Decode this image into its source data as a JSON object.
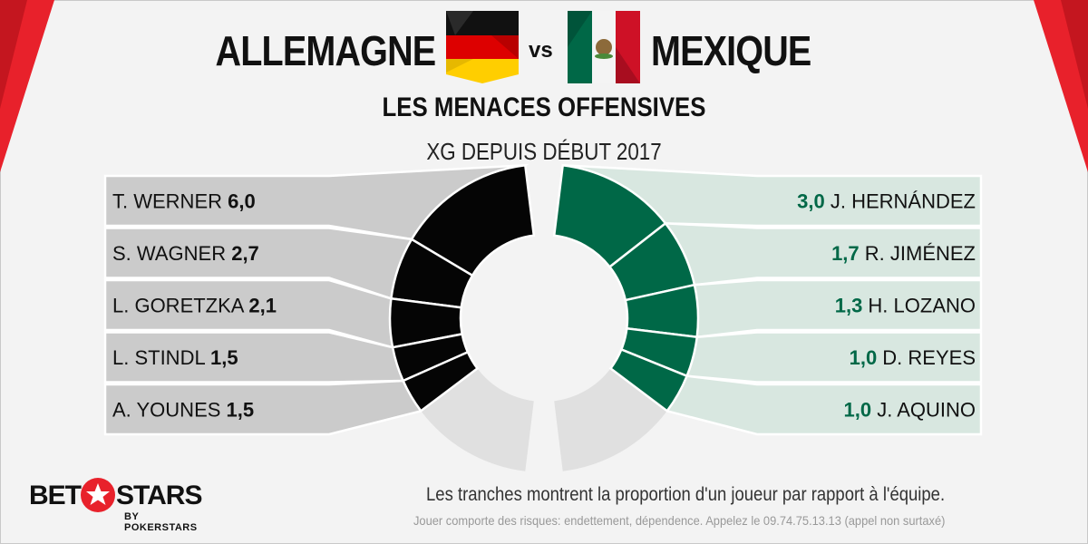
{
  "header": {
    "team_left": "ALLEMAGNE",
    "vs": "vs",
    "team_right": "MEXIQUE",
    "title": "LES MENACES OFFENSIVES",
    "subtitle": "XG DEPUIS DÉBUT 2017"
  },
  "footer": {
    "note": "Les tranches montrent la proportion d'un joueur par rapport à l'équipe.",
    "legal": "Jouer comporte des risques: endettement, dépendence. Appelez le 09.74.75.13.13  (appel non surtaxé)"
  },
  "logo": {
    "bet": "BET",
    "stars": "STARS",
    "sub": "BY POKERSTARS"
  },
  "colors": {
    "germany_slice": "#050505",
    "germany_rest": "#e0e0e0",
    "germany_row": "#cbcbcb",
    "mexico_slice": "#006847",
    "mexico_rest": "#e0e0e0",
    "mexico_row": "#d8e7e0",
    "mexico_value": "#006847"
  },
  "chart_data": [
    {
      "type": "pie",
      "team": "ALLEMAGNE",
      "title": "XG DEPUIS DÉBUT 2017",
      "series": [
        {
          "name": "T. WERNER",
          "value": 6.0,
          "label": "6,0"
        },
        {
          "name": "S. WAGNER",
          "value": 2.7,
          "label": "2,7"
        },
        {
          "name": "L. GORETZKA",
          "value": 2.1,
          "label": "2,1"
        },
        {
          "name": "L. STINDL",
          "value": 1.5,
          "label": "1,5"
        },
        {
          "name": "A. YOUNES",
          "value": 1.5,
          "label": "1,5"
        }
      ]
    },
    {
      "type": "pie",
      "team": "MEXIQUE",
      "title": "XG DEPUIS DÉBUT 2017",
      "series": [
        {
          "name": "J. HERNÁNDEZ",
          "value": 3.0,
          "label": "3,0"
        },
        {
          "name": "R. JIMÉNEZ",
          "value": 1.7,
          "label": "1,7"
        },
        {
          "name": "H. LOZANO",
          "value": 1.3,
          "label": "1,3"
        },
        {
          "name": "D. REYES",
          "value": 1.0,
          "label": "1,0"
        },
        {
          "name": "J. AQUINO",
          "value": 1.0,
          "label": "1,0"
        }
      ]
    }
  ]
}
